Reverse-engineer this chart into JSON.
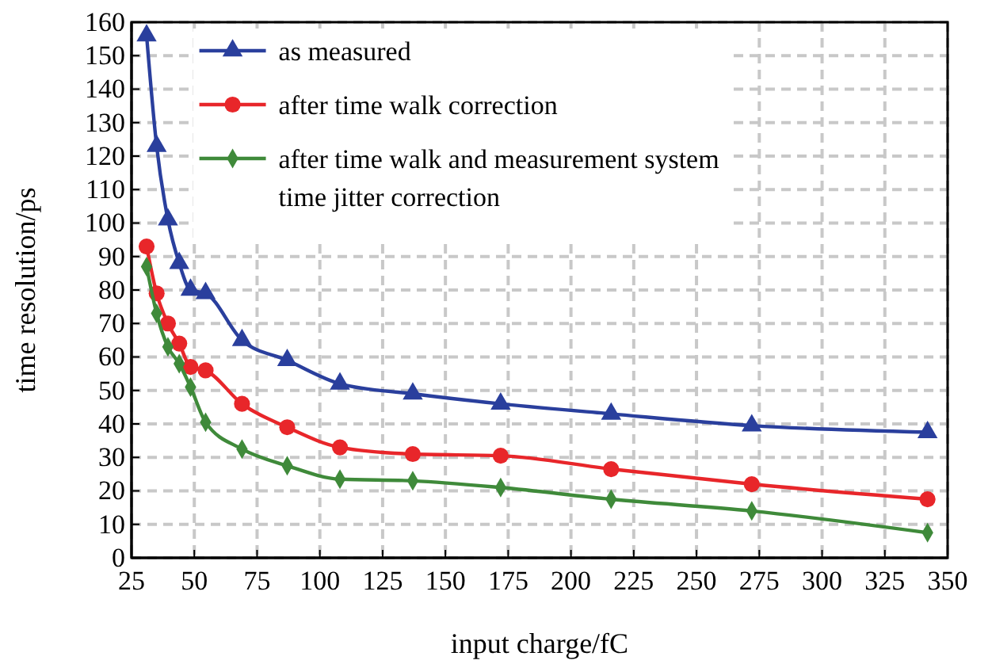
{
  "chart_data": {
    "type": "line",
    "xlabel": "input charge/fC",
    "ylabel": "time resolution/ps",
    "x": [
      31,
      35,
      39.5,
      44,
      48.5,
      54.5,
      69,
      87,
      108,
      137,
      172,
      216,
      272,
      342
    ],
    "xlim": [
      25,
      350
    ],
    "xticks": [
      25,
      50,
      75,
      100,
      125,
      150,
      175,
      200,
      225,
      250,
      275,
      300,
      325,
      350
    ],
    "ylim": [
      0,
      160
    ],
    "yticks": [
      0,
      10,
      20,
      30,
      40,
      50,
      60,
      70,
      80,
      90,
      100,
      110,
      120,
      130,
      140,
      150,
      160
    ],
    "grid": true,
    "legend": "top",
    "line_style": "solid",
    "series": [
      {
        "name": "as measured",
        "color": "#2a3f9d",
        "marker": "triangle",
        "values": [
          156,
          123,
          101,
          88,
          80,
          79,
          65,
          59,
          52,
          49,
          46,
          43,
          39.5,
          37.5
        ]
      },
      {
        "name": "after time walk correction",
        "color": "#e8262a",
        "marker": "circle",
        "values": [
          93,
          79,
          70,
          64,
          57,
          56,
          46,
          39,
          33,
          31,
          30.5,
          26.5,
          22,
          17.5
        ]
      },
      {
        "name": "after time walk and measurement system time jitter correction",
        "color": "#3f8a3a",
        "marker": "diamond",
        "values": [
          87,
          73,
          63,
          58,
          51,
          40.5,
          32.5,
          27.5,
          23.5,
          23,
          21,
          17.5,
          14,
          7.5
        ]
      }
    ]
  }
}
